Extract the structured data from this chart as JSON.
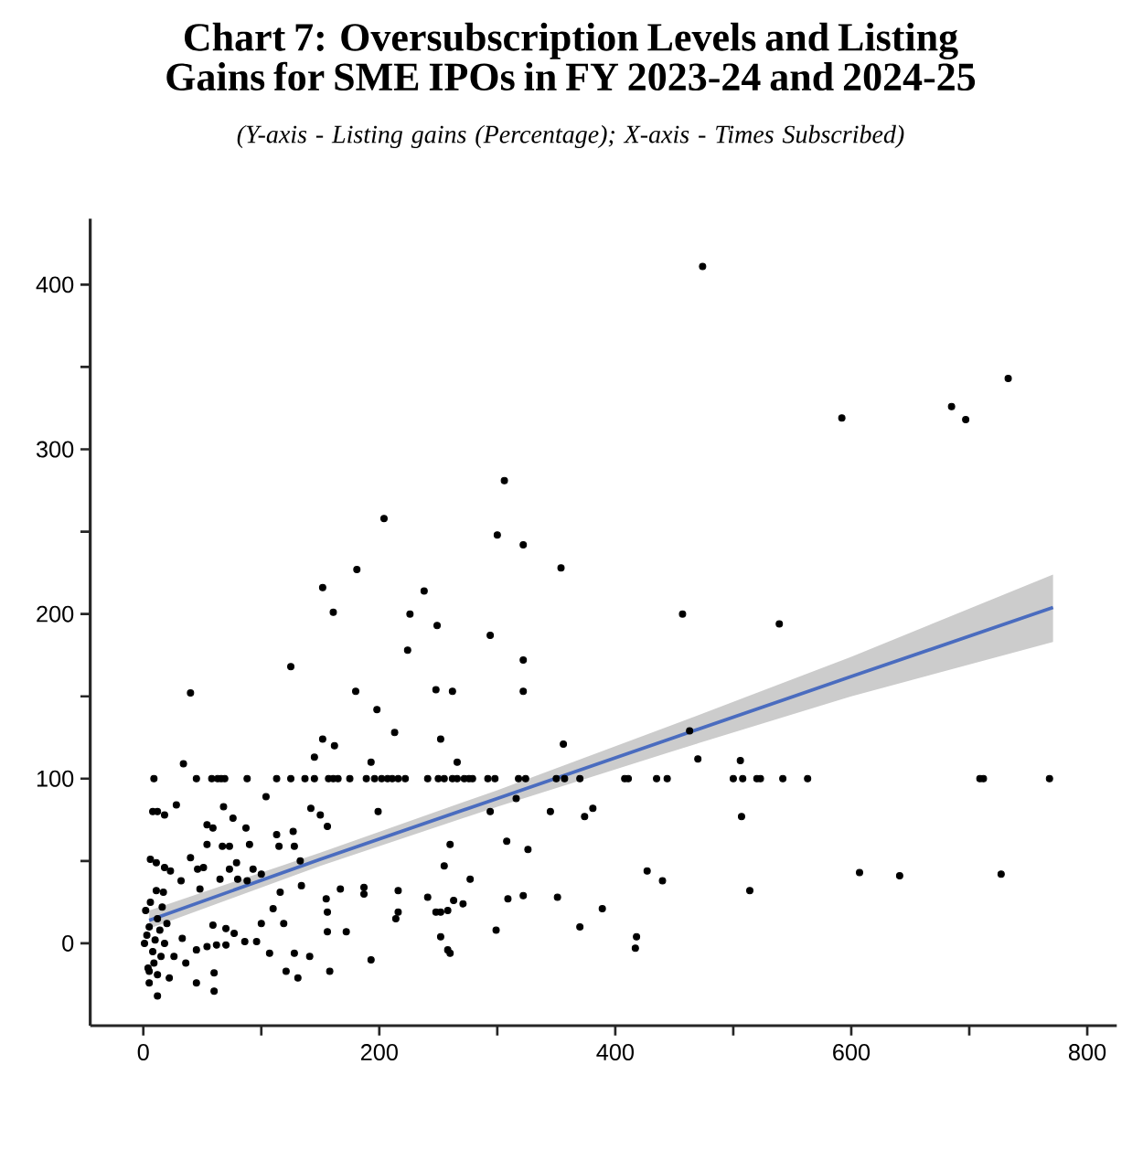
{
  "chart_data": {
    "type": "scatter",
    "title": "Chart 7: Oversubscription Levels and Listing Gains for SME IPOs in FY 2023-24 and 2024-25",
    "subtitle": "(Y-axis - Listing gains (Percentage); X-axis - Times Subscribed)",
    "marker": "circle",
    "grid": false,
    "xlim": [
      -45,
      825
    ],
    "ylim": [
      -50,
      440
    ],
    "xticks": [
      0,
      {
        "value": 100,
        "label": null
      },
      200,
      {
        "value": 300,
        "label": null
      },
      400,
      {
        "value": 500,
        "label": null
      },
      600,
      {
        "value": 700,
        "label": null
      },
      800
    ],
    "yticks": [
      0,
      {
        "value": 50,
        "label": null
      },
      100,
      {
        "value": 150,
        "label": null
      },
      200,
      {
        "value": 250,
        "label": null
      },
      300,
      {
        "value": 350,
        "label": null
      },
      400
    ],
    "series": [
      {
        "type": "scatter",
        "color": "#000000",
        "x": [
          40,
          125,
          180,
          198,
          152,
          161,
          181,
          204,
          226,
          224,
          238,
          249,
          248,
          262,
          294,
          300,
          306,
          322,
          322,
          322,
          474,
          457,
          539,
          354,
          252,
          266,
          356,
          470,
          506,
          463,
          255,
          262,
          266,
          272,
          276,
          279,
          292,
          298,
          318,
          324,
          350,
          357,
          370,
          408,
          411,
          435,
          444,
          500,
          508,
          520,
          523,
          542,
          316,
          294,
          345,
          374,
          381,
          507,
          260,
          308,
          326,
          255,
          277,
          427,
          440,
          514,
          263,
          271,
          309,
          322,
          351,
          389,
          252,
          299,
          370,
          252,
          260,
          418,
          417,
          592,
          685,
          697,
          733,
          563,
          709,
          712,
          768,
          607,
          641,
          727,
          9,
          45,
          58,
          63,
          66,
          69,
          88,
          113,
          125,
          137,
          145,
          157,
          161,
          165,
          175,
          189,
          196,
          202,
          207,
          211,
          216,
          222,
          241,
          250,
          34,
          213,
          152,
          162,
          145,
          193,
          8,
          12,
          18,
          28,
          68,
          104,
          76,
          54,
          59,
          142,
          150,
          199,
          156,
          127,
          87,
          54,
          67,
          73,
          90,
          113,
          115,
          128,
          133,
          40,
          6,
          11,
          18,
          23,
          46,
          51,
          79,
          73,
          93,
          65,
          80,
          88,
          100,
          116,
          134,
          32,
          11,
          17,
          48,
          187,
          167,
          187,
          216,
          241,
          248,
          258,
          258,
          216,
          214,
          155,
          156,
          172,
          156,
          193,
          158,
          131,
          121,
          141,
          128,
          119,
          110,
          100,
          107,
          96,
          86,
          77,
          70,
          62,
          70,
          59,
          54,
          60,
          60,
          45,
          36,
          26,
          45,
          33,
          22,
          12,
          5,
          5,
          12,
          1,
          3,
          5,
          8,
          10,
          12,
          15,
          2,
          6,
          14,
          18,
          9,
          4,
          20,
          16
        ],
        "values": [
          152,
          168,
          153,
          142,
          216,
          201,
          227,
          258,
          200,
          178,
          214,
          193,
          154,
          153,
          187,
          248,
          281,
          242,
          172,
          153,
          411,
          200,
          194,
          228,
          124,
          110,
          121,
          112,
          111,
          129,
          100,
          100,
          100,
          100,
          100,
          100,
          100,
          100,
          100,
          100,
          100,
          100,
          100,
          100,
          100,
          100,
          100,
          100,
          100,
          100,
          100,
          100,
          88,
          80,
          80,
          77,
          82,
          77,
          60,
          62,
          57,
          47,
          39,
          44,
          38,
          32,
          26,
          24,
          27,
          29,
          28,
          21,
          19,
          8,
          10,
          4,
          -6,
          4,
          -3,
          319,
          326,
          318,
          343,
          100,
          100,
          100,
          100,
          43,
          41,
          42,
          100,
          100,
          100,
          100,
          100,
          100,
          100,
          100,
          100,
          100,
          100,
          100,
          100,
          100,
          100,
          100,
          100,
          100,
          100,
          100,
          100,
          100,
          100,
          100,
          109,
          128,
          124,
          120,
          113,
          110,
          80,
          80,
          78,
          84,
          83,
          89,
          76,
          72,
          70,
          82,
          78,
          80,
          71,
          68,
          70,
          60,
          59,
          59,
          60,
          66,
          59,
          59,
          50,
          52,
          51,
          49,
          46,
          44,
          45,
          46,
          49,
          45,
          45,
          39,
          39,
          38,
          42,
          31,
          35,
          38,
          32,
          31,
          33,
          34,
          33,
          30,
          32,
          28,
          19,
          20,
          -4,
          19,
          15,
          27,
          19,
          7,
          7,
          -10,
          -17,
          -21,
          -17,
          -8,
          -6,
          12,
          21,
          12,
          -6,
          1,
          1,
          6,
          -1,
          -1,
          9,
          11,
          -2,
          -18,
          -29,
          -24,
          -12,
          -8,
          -4,
          3,
          -21,
          -32,
          -24,
          -17,
          -19,
          0,
          5,
          10,
          -5,
          2,
          15,
          -8,
          20,
          25,
          8,
          0,
          -12,
          -15,
          12,
          22
        ]
      },
      {
        "type": "line",
        "color": "#4a6cbf",
        "marker": "none",
        "x": [
          5,
          150,
          300,
          450,
          600,
          771
        ],
        "values": [
          14,
          51,
          88,
          125,
          162,
          204
        ],
        "lower": [
          9,
          47,
          83,
          117,
          150,
          183
        ],
        "upper": [
          20,
          55,
          93,
          133,
          174,
          224
        ]
      }
    ]
  }
}
